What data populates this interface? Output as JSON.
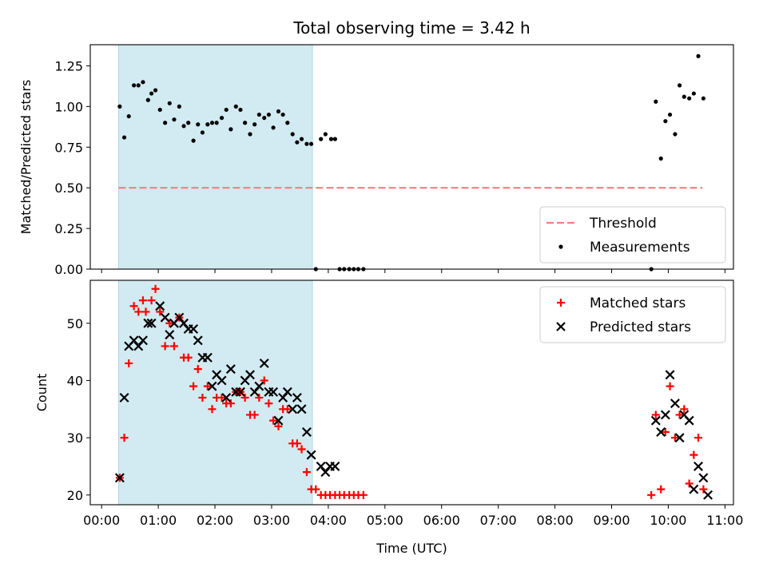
{
  "chart_data": [
    {
      "type": "scatter",
      "title": "Total observing time = 3.42 h",
      "xlabel": "",
      "ylabel": "Matched/Predicted stars",
      "ylim": [
        0,
        1.38
      ],
      "xlim_hours": [
        -0.2,
        11.15
      ],
      "yticks": [
        "0.00",
        "0.25",
        "0.50",
        "0.75",
        "1.00",
        "1.25"
      ],
      "ytick_values": [
        0,
        0.25,
        0.5,
        0.75,
        1.0,
        1.25
      ],
      "shaded_interval_hours": [
        0.3,
        3.72
      ],
      "shade_color": "#add8e6",
      "threshold": {
        "name": "Threshold",
        "value": 0.5,
        "x_range": [
          0.3,
          10.6
        ],
        "color": "#f08080"
      },
      "legend": {
        "position": "lower-right",
        "entries": [
          "Threshold",
          "Measurements"
        ]
      },
      "series": [
        {
          "name": "Measurements",
          "color": "#000000",
          "marker": "dot",
          "points": [
            [
              0.32,
              1.0
            ],
            [
              0.4,
              0.81
            ],
            [
              0.48,
              0.94
            ],
            [
              0.57,
              1.13
            ],
            [
              0.65,
              1.13
            ],
            [
              0.73,
              1.15
            ],
            [
              0.82,
              1.04
            ],
            [
              0.88,
              1.08
            ],
            [
              0.95,
              1.1
            ],
            [
              1.03,
              0.98
            ],
            [
              1.12,
              0.9
            ],
            [
              1.2,
              1.02
            ],
            [
              1.28,
              0.92
            ],
            [
              1.37,
              1.0
            ],
            [
              1.45,
              0.88
            ],
            [
              1.53,
              0.9
            ],
            [
              1.62,
              0.79
            ],
            [
              1.7,
              0.89
            ],
            [
              1.78,
              0.84
            ],
            [
              1.87,
              0.89
            ],
            [
              1.95,
              0.9
            ],
            [
              2.03,
              0.9
            ],
            [
              2.12,
              0.93
            ],
            [
              2.2,
              0.98
            ],
            [
              2.28,
              0.86
            ],
            [
              2.37,
              1.0
            ],
            [
              2.45,
              0.98
            ],
            [
              2.53,
              0.9
            ],
            [
              2.62,
              0.83
            ],
            [
              2.7,
              0.89
            ],
            [
              2.78,
              0.95
            ],
            [
              2.87,
              0.93
            ],
            [
              2.95,
              0.95
            ],
            [
              3.03,
              0.87
            ],
            [
              3.12,
              0.97
            ],
            [
              3.2,
              0.95
            ],
            [
              3.28,
              0.9
            ],
            [
              3.37,
              0.83
            ],
            [
              3.45,
              0.78
            ],
            [
              3.53,
              0.8
            ],
            [
              3.62,
              0.77
            ],
            [
              3.7,
              0.77
            ],
            [
              3.78,
              0.0
            ],
            [
              3.87,
              0.8
            ],
            [
              3.95,
              0.83
            ],
            [
              4.05,
              0.8
            ],
            [
              4.12,
              0.8
            ],
            [
              4.2,
              0.0
            ],
            [
              4.28,
              0.0
            ],
            [
              4.37,
              0.0
            ],
            [
              4.45,
              0.0
            ],
            [
              4.53,
              0.0
            ],
            [
              4.62,
              0.0
            ],
            [
              9.7,
              0.0
            ],
            [
              9.78,
              1.03
            ],
            [
              9.87,
              0.68
            ],
            [
              9.95,
              0.91
            ],
            [
              10.03,
              0.95
            ],
            [
              10.12,
              0.83
            ],
            [
              10.2,
              1.13
            ],
            [
              10.28,
              1.06
            ],
            [
              10.37,
              1.05
            ],
            [
              10.45,
              1.08
            ],
            [
              10.53,
              1.31
            ],
            [
              10.62,
              1.05
            ]
          ]
        }
      ]
    },
    {
      "type": "scatter",
      "title": "",
      "xlabel": "Time (UTC)",
      "ylabel": "Count",
      "ylim": [
        18.3,
        57.5
      ],
      "xlim_hours": [
        -0.2,
        11.15
      ],
      "yticks": [
        "20",
        "30",
        "40",
        "50"
      ],
      "ytick_values": [
        20,
        30,
        40,
        50
      ],
      "xticks": [
        "00:00",
        "01:00",
        "02:00",
        "03:00",
        "04:00",
        "05:00",
        "06:00",
        "07:00",
        "08:00",
        "09:00",
        "10:00",
        "11:00"
      ],
      "xtick_values": [
        0,
        1,
        2,
        3,
        4,
        5,
        6,
        7,
        8,
        9,
        10,
        11
      ],
      "shaded_interval_hours": [
        0.3,
        3.72
      ],
      "shade_color": "#add8e6",
      "legend": {
        "position": "upper-right",
        "entries": [
          "Matched stars",
          "Predicted stars"
        ]
      },
      "series": [
        {
          "name": "Matched stars",
          "color": "#ff0000",
          "marker": "plus",
          "points": [
            [
              0.32,
              23
            ],
            [
              0.4,
              30
            ],
            [
              0.48,
              43
            ],
            [
              0.57,
              53
            ],
            [
              0.65,
              52
            ],
            [
              0.73,
              54
            ],
            [
              0.78,
              52
            ],
            [
              0.88,
              54
            ],
            [
              0.95,
              56
            ],
            [
              1.03,
              52
            ],
            [
              1.12,
              46
            ],
            [
              1.2,
              50
            ],
            [
              1.28,
              46
            ],
            [
              1.37,
              51
            ],
            [
              1.45,
              44
            ],
            [
              1.53,
              44
            ],
            [
              1.62,
              39
            ],
            [
              1.7,
              42
            ],
            [
              1.78,
              37
            ],
            [
              1.87,
              39
            ],
            [
              1.95,
              35
            ],
            [
              2.03,
              37
            ],
            [
              2.12,
              37
            ],
            [
              2.2,
              36
            ],
            [
              2.28,
              36
            ],
            [
              2.37,
              38
            ],
            [
              2.45,
              38
            ],
            [
              2.53,
              37
            ],
            [
              2.62,
              34
            ],
            [
              2.7,
              34
            ],
            [
              2.78,
              37
            ],
            [
              2.87,
              40
            ],
            [
              2.95,
              36
            ],
            [
              3.03,
              33
            ],
            [
              3.12,
              32
            ],
            [
              3.2,
              35
            ],
            [
              3.28,
              35
            ],
            [
              3.37,
              29
            ],
            [
              3.45,
              29
            ],
            [
              3.53,
              28
            ],
            [
              3.62,
              24
            ],
            [
              3.7,
              21
            ],
            [
              3.78,
              21
            ],
            [
              3.87,
              20
            ],
            [
              3.95,
              20
            ],
            [
              4.03,
              20
            ],
            [
              4.12,
              20
            ],
            [
              4.2,
              20
            ],
            [
              4.28,
              20
            ],
            [
              4.37,
              20
            ],
            [
              4.45,
              20
            ],
            [
              4.53,
              20
            ],
            [
              4.62,
              20
            ],
            [
              9.7,
              20
            ],
            [
              9.78,
              34
            ],
            [
              9.87,
              21
            ],
            [
              9.95,
              31
            ],
            [
              10.03,
              39
            ],
            [
              10.12,
              30
            ],
            [
              10.2,
              34
            ],
            [
              10.28,
              35
            ],
            [
              10.37,
              22
            ],
            [
              10.45,
              27
            ],
            [
              10.53,
              30
            ],
            [
              10.62,
              21
            ]
          ]
        },
        {
          "name": "Predicted stars",
          "color": "#000000",
          "marker": "x",
          "points": [
            [
              0.32,
              23
            ],
            [
              0.4,
              37
            ],
            [
              0.48,
              46
            ],
            [
              0.57,
              47
            ],
            [
              0.65,
              46
            ],
            [
              0.73,
              47
            ],
            [
              0.82,
              50
            ],
            [
              0.88,
              50
            ],
            [
              1.03,
              53
            ],
            [
              1.12,
              51
            ],
            [
              1.2,
              48
            ],
            [
              1.28,
              50
            ],
            [
              1.37,
              51
            ],
            [
              1.45,
              50
            ],
            [
              1.53,
              49
            ],
            [
              1.62,
              49
            ],
            [
              1.7,
              47
            ],
            [
              1.78,
              44
            ],
            [
              1.87,
              44
            ],
            [
              1.95,
              39
            ],
            [
              2.03,
              41
            ],
            [
              2.12,
              40
            ],
            [
              2.2,
              37
            ],
            [
              2.28,
              42
            ],
            [
              2.37,
              38
            ],
            [
              2.45,
              38
            ],
            [
              2.53,
              40
            ],
            [
              2.62,
              41
            ],
            [
              2.7,
              38
            ],
            [
              2.78,
              39
            ],
            [
              2.87,
              43
            ],
            [
              2.95,
              38
            ],
            [
              3.03,
              38
            ],
            [
              3.12,
              33
            ],
            [
              3.2,
              37
            ],
            [
              3.28,
              38
            ],
            [
              3.37,
              35
            ],
            [
              3.45,
              37
            ],
            [
              3.53,
              35
            ],
            [
              3.62,
              31
            ],
            [
              3.7,
              27
            ],
            [
              3.87,
              25
            ],
            [
              3.95,
              24
            ],
            [
              4.03,
              25
            ],
            [
              4.12,
              25
            ],
            [
              9.78,
              33
            ],
            [
              9.87,
              31
            ],
            [
              9.95,
              34
            ],
            [
              10.03,
              41
            ],
            [
              10.12,
              36
            ],
            [
              10.2,
              30
            ],
            [
              10.28,
              34
            ],
            [
              10.37,
              33
            ],
            [
              10.45,
              21
            ],
            [
              10.53,
              25
            ],
            [
              10.62,
              23
            ],
            [
              10.7,
              20
            ]
          ]
        }
      ]
    }
  ]
}
